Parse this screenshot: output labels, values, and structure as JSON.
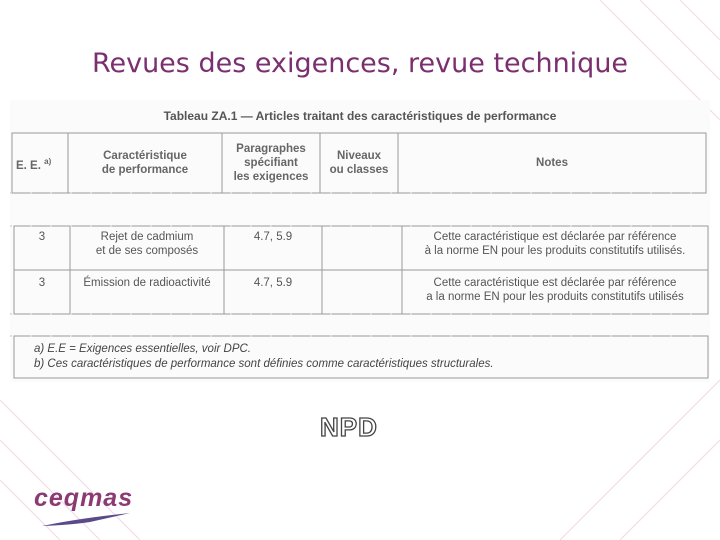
{
  "title": "Revues des exigences, revue technique",
  "table": {
    "caption": "Tableau ZA.1 — Articles traitant des caractéristiques de performance",
    "header": [
      {
        "text": "E. E.",
        "note": "a)"
      },
      [
        "Caractéristique",
        "de performance"
      ],
      [
        "Paragraphes",
        "spécifiant",
        "les exigences"
      ],
      [
        "Niveaux",
        "ou classes"
      ],
      [
        "Notes"
      ]
    ],
    "rows": [
      [
        "3",
        [
          "Rejet de cadmium",
          "et de ses composés"
        ],
        "4.7, 5.9",
        [
          "Cette caractéristique est déclarée par référence",
          "à la norme EN pour les produits constitutifs utilisés."
        ]
      ],
      [
        "3",
        [
          "Émission de radioactivité"
        ],
        "4.7, 5.9",
        [
          "Cette caractéristique est déclarée par référence",
          "a la norme EN pour les produits constitutifs utilisés"
        ]
      ]
    ],
    "footnotes": [
      "a) E.E = Exigences essentielles, voir DPC.",
      "b) Ces caractéristiques de performance sont définies comme caractéristiques structurales."
    ]
  },
  "stamp": "NPD",
  "logo": "ceqmas"
}
